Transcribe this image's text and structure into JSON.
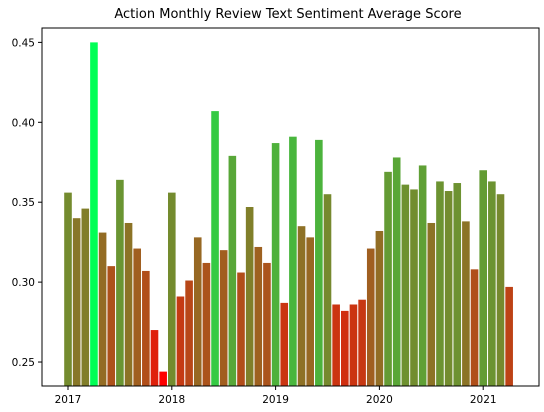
{
  "chart_data": {
    "type": "bar",
    "title": "Action Monthly Review Text Sentiment Average Score",
    "xlabel": "",
    "ylabel": "",
    "x_tick_labels": [
      "2017",
      "2018",
      "2019",
      "2020",
      "2021"
    ],
    "y_tick_labels": [
      "0.25",
      "0.30",
      "0.35",
      "0.40",
      "0.45"
    ],
    "ylim": [
      0.235,
      0.459
    ],
    "grid": false,
    "legend": "none",
    "colors": {
      "low": "#ff0000",
      "high": "#00ff55"
    },
    "color_range": [
      0.244,
      0.45
    ],
    "series": [
      {
        "months": [
          "2017-01",
          "2017-02",
          "2017-03",
          "2017-04",
          "2017-05",
          "2017-06",
          "2017-07",
          "2017-08",
          "2017-09",
          "2017-10",
          "2017-11",
          "2017-12",
          "2018-01",
          "2018-02",
          "2018-03",
          "2018-04",
          "2018-05",
          "2018-06",
          "2018-07",
          "2018-08",
          "2018-09",
          "2018-10",
          "2018-11",
          "2018-12",
          "2019-01",
          "2019-02",
          "2019-03",
          "2019-04",
          "2019-05",
          "2019-06",
          "2019-07",
          "2019-08",
          "2019-09",
          "2019-10",
          "2019-11",
          "2019-12",
          "2020-01",
          "2020-02",
          "2020-03",
          "2020-04",
          "2020-05",
          "2020-06",
          "2020-07",
          "2020-08",
          "2020-09",
          "2020-10",
          "2020-11",
          "2020-12",
          "2021-01",
          "2021-02",
          "2021-03",
          "2021-04"
        ],
        "values": [
          0.356,
          0.34,
          0.346,
          0.45,
          0.331,
          0.31,
          0.364,
          0.337,
          0.321,
          0.307,
          0.27,
          0.244,
          0.356,
          0.291,
          0.301,
          0.328,
          0.312,
          0.407,
          0.32,
          0.379,
          0.306,
          0.347,
          0.322,
          0.312,
          0.387,
          0.287,
          0.391,
          0.335,
          0.328,
          0.389,
          0.355,
          0.286,
          0.282,
          0.286,
          0.289,
          0.321,
          0.332,
          0.369,
          0.378,
          0.361,
          0.358,
          0.373,
          0.337,
          0.363,
          0.357,
          0.362,
          0.338,
          0.308,
          0.37,
          0.363,
          0.355,
          0.297
        ]
      }
    ]
  }
}
